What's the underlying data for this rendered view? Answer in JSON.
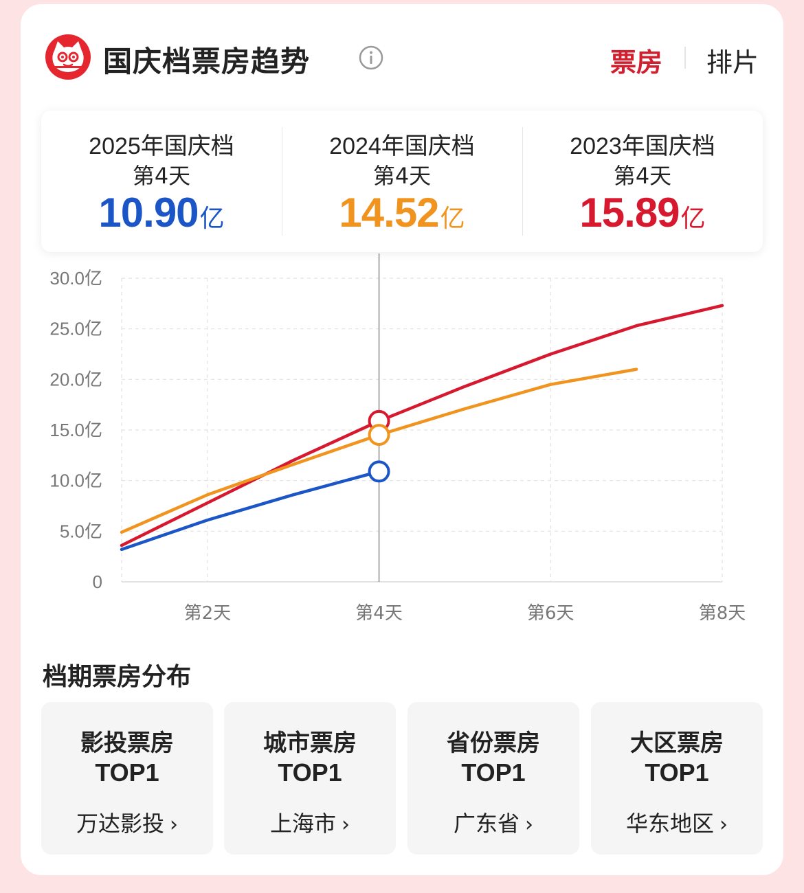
{
  "header": {
    "title": "国庆档票房趋势",
    "tabs": [
      {
        "label": "票房",
        "active": true
      },
      {
        "label": "排片",
        "active": false
      }
    ],
    "logo_icon": "cat-logo-icon",
    "info_icon": "info-icon"
  },
  "comparison": [
    {
      "year_label": "2025年国庆档",
      "day_label": "第4天",
      "value": "10.90",
      "unit": "亿",
      "color": "#1b55c6"
    },
    {
      "year_label": "2024年国庆档",
      "day_label": "第4天",
      "value": "14.52",
      "unit": "亿",
      "color": "#f0941f"
    },
    {
      "year_label": "2023年国庆档",
      "day_label": "第4天",
      "value": "15.89",
      "unit": "亿",
      "color": "#d7192f"
    }
  ],
  "chart_data": {
    "type": "line",
    "x": [
      1,
      2,
      3,
      4,
      5,
      6,
      7,
      8
    ],
    "x_tick_labels": [
      "第2天",
      "第4天",
      "第6天",
      "第8天"
    ],
    "x_ticks": [
      2,
      4,
      6,
      8
    ],
    "xlim": [
      1,
      8
    ],
    "y_tick_labels": [
      "0",
      "5.0亿",
      "10.0亿",
      "15.0亿",
      "20.0亿",
      "25.0亿",
      "30.0亿"
    ],
    "y_ticks": [
      0,
      5,
      10,
      15,
      20,
      25,
      30
    ],
    "ylim": [
      0,
      30
    ],
    "grid": true,
    "highlight_x": 4,
    "series": [
      {
        "color": "#d7192f",
        "x": [
          1,
          2,
          3,
          4,
          5,
          6,
          7,
          8
        ],
        "values": [
          3.6,
          7.8,
          12.0,
          15.89,
          19.3,
          22.5,
          25.3,
          27.3
        ]
      },
      {
        "color": "#f0941f",
        "x": [
          1,
          2,
          3,
          4,
          5,
          6,
          7
        ],
        "values": [
          4.9,
          8.6,
          11.6,
          14.52,
          17.1,
          19.5,
          21.0
        ]
      },
      {
        "color": "#1b55c6",
        "x": [
          1,
          2,
          3,
          4
        ],
        "values": [
          3.2,
          6.1,
          8.6,
          10.9
        ]
      }
    ]
  },
  "distribution": {
    "title": "档期票房分布",
    "tiles": [
      {
        "title": "影投票房",
        "rank": "TOP1",
        "value": "万达影投",
        "chevron": "›"
      },
      {
        "title": "城市票房",
        "rank": "TOP1",
        "value": "上海市",
        "chevron": "›"
      },
      {
        "title": "省份票房",
        "rank": "TOP1",
        "value": "广东省",
        "chevron": "›"
      },
      {
        "title": "大区票房",
        "rank": "TOP1",
        "value": "华东地区",
        "chevron": "›"
      }
    ]
  }
}
